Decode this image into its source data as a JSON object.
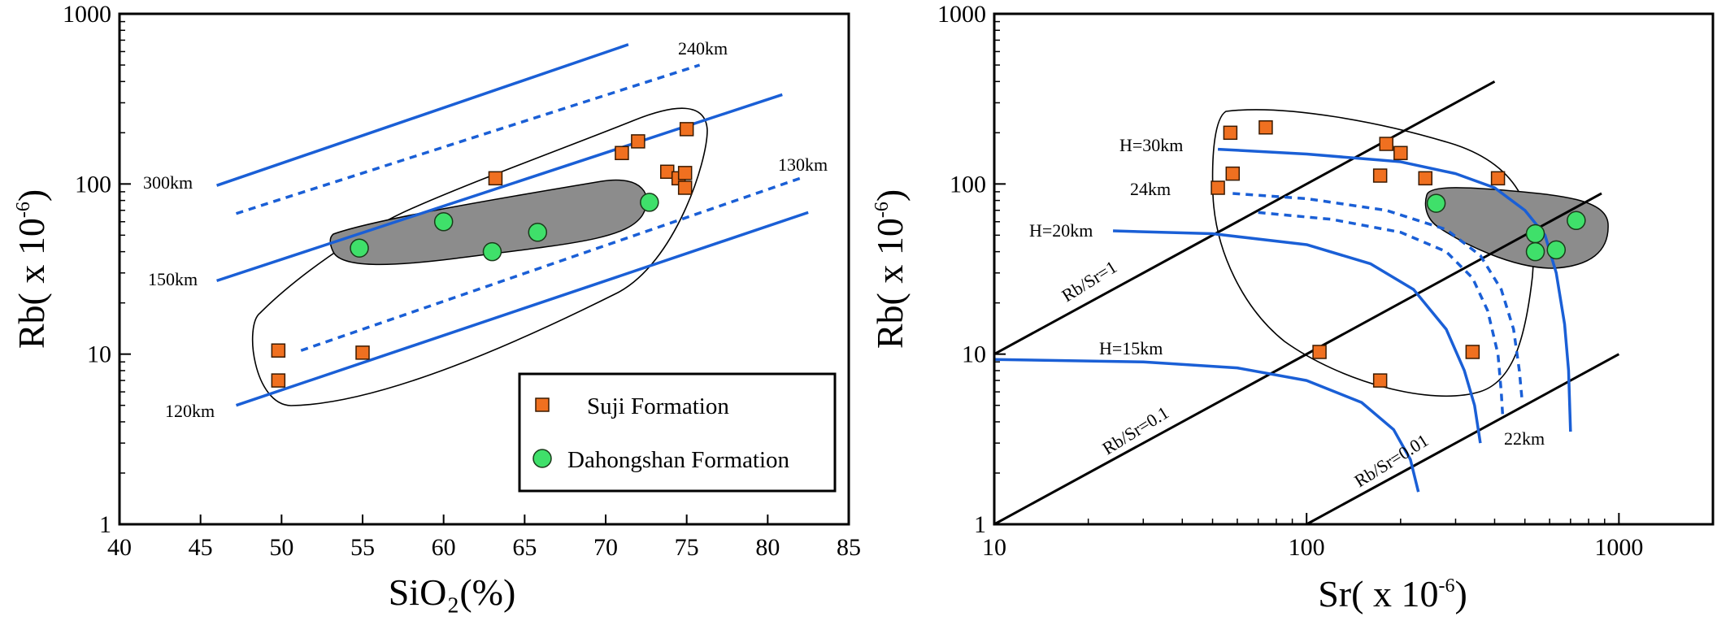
{
  "chart_data": [
    {
      "type": "scatter",
      "xlabel": "SiO₂(%)",
      "ylabel_main": "Rb( x 10",
      "ylabel_sup": "-6",
      "ylabel_close": ")",
      "x_scale": "linear",
      "y_scale": "log",
      "xlim": [
        40,
        85
      ],
      "ylim": [
        1,
        1000
      ],
      "x_ticks": [
        "40",
        "45",
        "50",
        "55",
        "60",
        "65",
        "70",
        "75",
        "80",
        "85"
      ],
      "y_ticks": [
        "1",
        "10",
        "100",
        "1000"
      ],
      "series": [
        {
          "name": "Suji Formation",
          "marker": "square",
          "color": "#f07020",
          "points": [
            [
              49.8,
              10.5
            ],
            [
              49.8,
              7.0
            ],
            [
              55.0,
              10.2
            ],
            [
              63.2,
              108
            ],
            [
              71.0,
              152
            ],
            [
              72.0,
              178
            ],
            [
              75.0,
              210
            ],
            [
              73.8,
              118
            ],
            [
              74.5,
              108
            ],
            [
              74.9,
              116
            ],
            [
              74.9,
              95
            ]
          ]
        },
        {
          "name": "Dahongshan Formation",
          "marker": "circle",
          "color": "#3fe06a",
          "points": [
            [
              54.8,
              42
            ],
            [
              60.0,
              60
            ],
            [
              63.0,
              40
            ],
            [
              65.8,
              52
            ],
            [
              72.7,
              78
            ]
          ]
        }
      ],
      "depth_lines": [
        {
          "label": "300km",
          "style": "solid",
          "from": [
            46.0,
            98
          ],
          "to": [
            71.4,
            660
          ]
        },
        {
          "label": "240km",
          "style": "dashed",
          "from": [
            47.2,
            67
          ],
          "to": [
            75.8,
            500
          ]
        },
        {
          "label": "150km",
          "style": "solid",
          "from": [
            46.0,
            27
          ],
          "to": [
            80.9,
            335
          ]
        },
        {
          "label": "130km",
          "style": "dashed",
          "from": [
            51.2,
            10.5
          ],
          "to": [
            82.0,
            108
          ]
        },
        {
          "label": "120km",
          "style": "solid",
          "from": [
            47.2,
            5.0
          ],
          "to": [
            82.5,
            68
          ]
        }
      ],
      "labels": [
        "300km",
        "240km",
        "150km",
        "130km",
        "120km"
      ],
      "legend": {
        "position": "bottom-right",
        "entries": [
          {
            "label": "Suji Formation",
            "marker": "square"
          },
          {
            "label": "Dahongshan Formation",
            "marker": "circle"
          }
        ]
      },
      "fields": [
        {
          "name": "Suji outline",
          "style": "open"
        },
        {
          "name": "Dahongshan field",
          "style": "filled grey",
          "color": "#8c8c8c"
        }
      ],
      "grid": false
    },
    {
      "type": "scatter",
      "xlabel_main": "Sr( x 10",
      "xlabel_sup": "-6",
      "xlabel_close": ")",
      "ylabel_main": "Rb( x 10",
      "ylabel_sup": "-6",
      "ylabel_close": ")",
      "x_scale": "log",
      "y_scale": "log",
      "xlim": [
        10,
        2000
      ],
      "ylim": [
        1,
        1000
      ],
      "x_ticks": [
        "10",
        "100",
        "1000"
      ],
      "y_ticks": [
        "1",
        "10",
        "100",
        "1000"
      ],
      "series": [
        {
          "name": "Suji Formation",
          "marker": "square",
          "color": "#f07020",
          "points": [
            [
              52,
              95
            ],
            [
              57,
              200
            ],
            [
              58,
              115
            ],
            [
              74,
              215
            ],
            [
              180,
              172
            ],
            [
              200,
              152
            ],
            [
              172,
              112
            ],
            [
              240,
              108
            ],
            [
              410,
              108
            ],
            [
              110,
              10.3
            ],
            [
              340,
              10.3
            ],
            [
              172,
              7.0
            ]
          ]
        },
        {
          "name": "Dahongshan Formation",
          "marker": "circle",
          "color": "#3fe06a",
          "points": [
            [
              260,
              77
            ],
            [
              540,
              51
            ],
            [
              540,
              40
            ],
            [
              630,
              41
            ],
            [
              730,
              61
            ]
          ]
        }
      ],
      "ratio_lines": [
        {
          "label": "Rb/Sr=1",
          "ratio": 1,
          "x_range": [
            10,
            400
          ]
        },
        {
          "label": "Rb/Sr=0.1",
          "ratio": 0.1,
          "x_range": [
            10,
            880
          ]
        },
        {
          "label": "Rb/Sr=0.01",
          "ratio": 0.01,
          "x_range": [
            100,
            1000
          ]
        }
      ],
      "depth_curves": [
        {
          "label": "H=30km",
          "style": "solid",
          "points": [
            [
              52,
              160
            ],
            [
              100,
              150
            ],
            [
              200,
              135
            ],
            [
              300,
              115
            ],
            [
              400,
              95
            ],
            [
              500,
              70
            ],
            [
              580,
              50
            ],
            [
              630,
              30
            ],
            [
              670,
              15
            ],
            [
              690,
              8
            ],
            [
              700,
              3.5
            ]
          ]
        },
        {
          "label": "24km",
          "style": "dashed",
          "points": [
            [
              58,
              88
            ],
            [
              100,
              82
            ],
            [
              180,
              70
            ],
            [
              280,
              54
            ],
            [
              360,
              38
            ],
            [
              420,
              24
            ],
            [
              460,
              14
            ],
            [
              480,
              8
            ],
            [
              490,
              5.3
            ]
          ]
        },
        {
          "label": "",
          "style": "dashed",
          "points": [
            [
              70,
              68
            ],
            [
              120,
              62
            ],
            [
              200,
              52
            ],
            [
              280,
              40
            ],
            [
              340,
              28
            ],
            [
              380,
              18
            ],
            [
              410,
              10
            ],
            [
              420,
              6
            ],
            [
              425,
              4.2
            ]
          ]
        },
        {
          "label": "22km",
          "style": "solid",
          "points": [
            [
              24,
              53
            ],
            [
              50,
              51
            ],
            [
              100,
              44
            ],
            [
              160,
              34
            ],
            [
              220,
              24
            ],
            [
              280,
              14
            ],
            [
              320,
              8
            ],
            [
              345,
              5
            ],
            [
              360,
              3
            ]
          ]
        },
        {
          "label": "H=20km",
          "style": "solid",
          "points": [
            [
              24,
              53
            ],
            [
              24,
              53
            ]
          ]
        },
        {
          "label": "H=15km",
          "style": "solid",
          "points": [
            [
              10,
              9.3
            ],
            [
              30,
              9.0
            ],
            [
              60,
              8.3
            ],
            [
              100,
              7.0
            ],
            [
              150,
              5.2
            ],
            [
              190,
              3.6
            ],
            [
              215,
              2.4
            ],
            [
              228,
              1.55
            ]
          ]
        }
      ],
      "labels": [
        "H=30km",
        "24km",
        "H=20km",
        "H=15km",
        "22km",
        "Rb/Sr=1",
        "Rb/Sr=0.1",
        "Rb/Sr=0.01"
      ],
      "fields": [
        {
          "name": "Suji outline",
          "style": "open"
        },
        {
          "name": "Dahongshan field",
          "style": "filled grey",
          "color": "#8c8c8c"
        }
      ],
      "grid": false
    }
  ],
  "legend_labels": {
    "suji": "Suji Formation",
    "dahongshan": "Dahongshan Formation"
  }
}
